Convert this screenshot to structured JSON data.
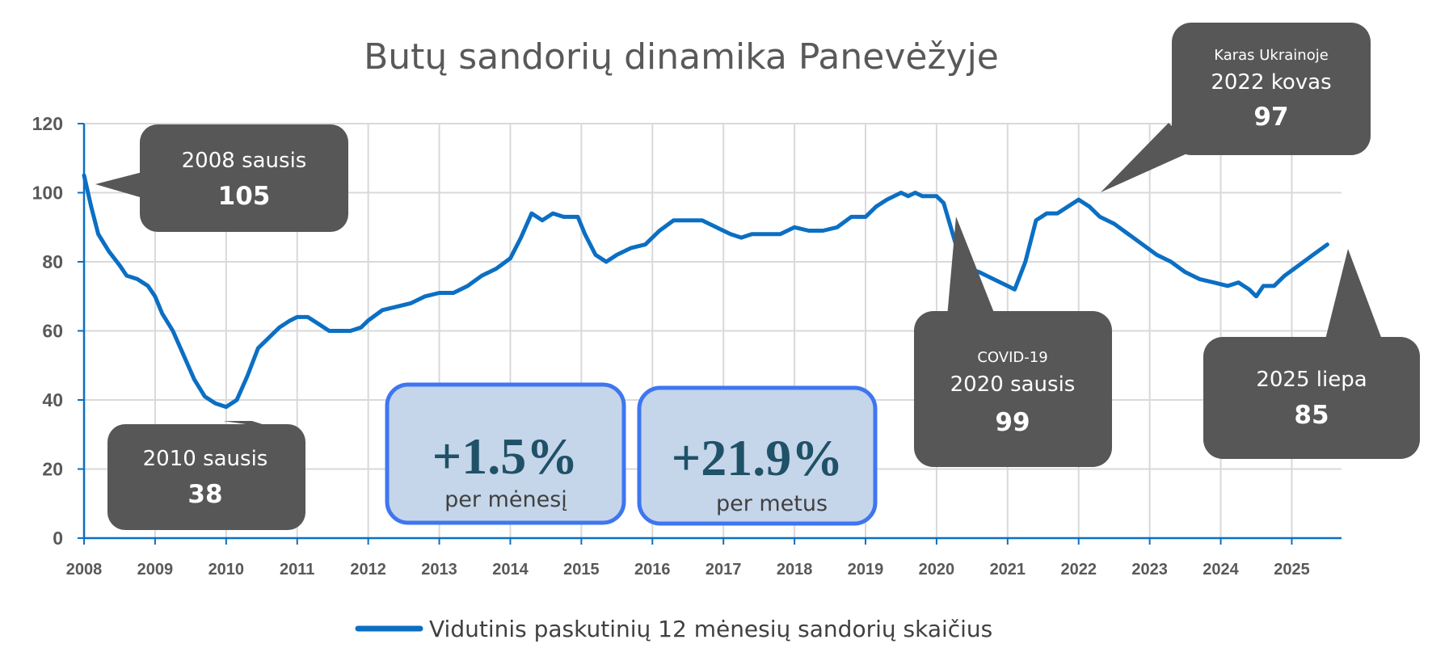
{
  "chart_data": {
    "type": "line",
    "title": "Butų sandorių dinamika Panevėžyje",
    "xlabel": "",
    "ylabel": "",
    "ylim": [
      0,
      120
    ],
    "yticks": [
      "0",
      "20",
      "40",
      "60",
      "80",
      "100",
      "120"
    ],
    "xlim": [
      2008,
      2025.7
    ],
    "xticks": [
      "2008",
      "2009",
      "2010",
      "2011",
      "2012",
      "2013",
      "2014",
      "2015",
      "2016",
      "2017",
      "2018",
      "2019",
      "2020",
      "2021",
      "2022",
      "2023",
      "2024",
      "2025"
    ],
    "grid": true,
    "legend": "bottom",
    "line_color": "#0b6fc3",
    "series": [
      {
        "name": "Vidutinis paskutinių 12 mėnesių sandorių skaičius",
        "x": [
          2008.0,
          2008.1,
          2008.2,
          2008.35,
          2008.5,
          2008.6,
          2008.75,
          2008.9,
          2009.0,
          2009.1,
          2009.25,
          2009.4,
          2009.55,
          2009.7,
          2009.85,
          2010.0,
          2010.15,
          2010.3,
          2010.45,
          2010.6,
          2010.75,
          2010.9,
          2011.0,
          2011.15,
          2011.3,
          2011.45,
          2011.6,
          2011.75,
          2011.9,
          2012.0,
          2012.2,
          2012.4,
          2012.6,
          2012.8,
          2013.0,
          2013.2,
          2013.4,
          2013.6,
          2013.8,
          2014.0,
          2014.15,
          2014.3,
          2014.45,
          2014.6,
          2014.75,
          2014.95,
          2015.05,
          2015.2,
          2015.35,
          2015.5,
          2015.7,
          2015.9,
          2016.1,
          2016.3,
          2016.5,
          2016.7,
          2016.9,
          2017.1,
          2017.25,
          2017.4,
          2017.6,
          2017.8,
          2018.0,
          2018.2,
          2018.4,
          2018.6,
          2018.8,
          2019.0,
          2019.15,
          2019.3,
          2019.5,
          2019.6,
          2019.7,
          2019.8,
          2019.9,
          2020.0,
          2020.1,
          2020.2,
          2020.3,
          2020.45,
          2020.6,
          2020.8,
          2021.0,
          2021.1,
          2021.25,
          2021.4,
          2021.55,
          2021.7,
          2021.85,
          2022.0,
          2022.15,
          2022.3,
          2022.5,
          2022.7,
          2022.9,
          2023.1,
          2023.3,
          2023.5,
          2023.7,
          2023.9,
          2024.1,
          2024.25,
          2024.4,
          2024.5,
          2024.6,
          2024.75,
          2024.9,
          2025.1,
          2025.3,
          2025.5
        ],
        "values": [
          105,
          96,
          88,
          83,
          79,
          76,
          75,
          73,
          70,
          65,
          60,
          53,
          46,
          41,
          39,
          38,
          40,
          47,
          55,
          58,
          61,
          63,
          64,
          64,
          62,
          60,
          60,
          60,
          61,
          63,
          66,
          67,
          68,
          70,
          71,
          71,
          73,
          76,
          78,
          81,
          87,
          94,
          92,
          94,
          93,
          93,
          88,
          82,
          80,
          82,
          84,
          85,
          89,
          92,
          92,
          92,
          90,
          88,
          87,
          88,
          88,
          88,
          90,
          89,
          89,
          90,
          93,
          93,
          96,
          98,
          100,
          99,
          100,
          99,
          99,
          99,
          97,
          90,
          83,
          78,
          77,
          75,
          73,
          72,
          80,
          92,
          94,
          94,
          96,
          98,
          96,
          93,
          91,
          88,
          85,
          82,
          80,
          77,
          75,
          74,
          73,
          74,
          72,
          70,
          73,
          73,
          76,
          79,
          82,
          85
        ]
      }
    ],
    "annotations": [
      {
        "small": "",
        "label": "2008 sausis",
        "value": "105"
      },
      {
        "small": "",
        "label": "2010 sausis",
        "value": "38"
      },
      {
        "small": "COVID-19",
        "label": "2020 sausis",
        "value": "99"
      },
      {
        "small": "Karas Ukrainoje",
        "label": "2022 kovas",
        "value": "97"
      },
      {
        "small": "",
        "label": "2025 liepa",
        "value": "85"
      }
    ],
    "kpis": [
      {
        "value": "+1.5%",
        "label": "per mėnesį"
      },
      {
        "value": "+21.9%",
        "label": "per metus"
      }
    ]
  },
  "colors": {
    "callout_fill": "#575757",
    "kpi_fill": "#c5d5ea",
    "kpi_border": "#3f76f0",
    "grid": "#d9d9d9",
    "axis": "#0b6fc3"
  }
}
